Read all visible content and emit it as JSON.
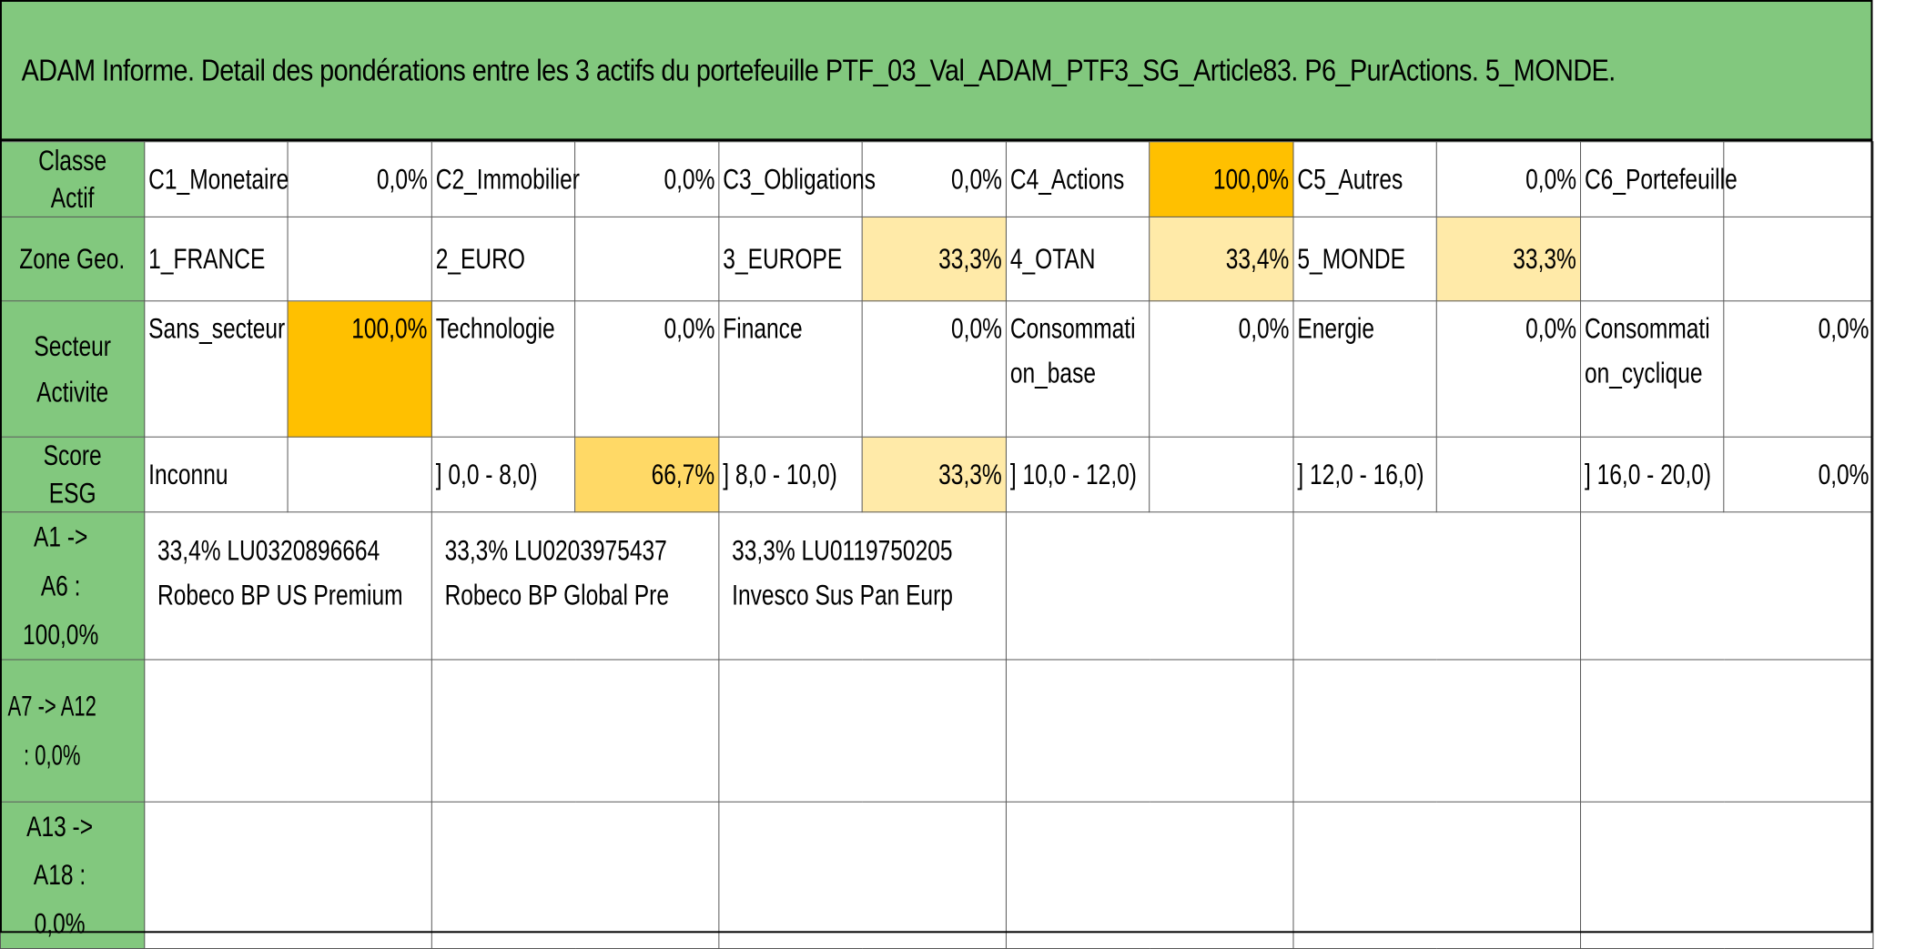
{
  "title": "ADAM Informe. Detail des pondérations entre les 3 actifs du portefeuille PTF_03_Val_ADAM_PTF3_SG_Article83. P6_PurActions. 5_MONDE.",
  "classe_actif": {
    "header": "Classe Actif",
    "items": [
      {
        "label": "C1_Monetaire",
        "value": "0,0%"
      },
      {
        "label": "C2_Immobilier",
        "value": "0,0%"
      },
      {
        "label": "C3_Obligations",
        "value": "0,0%"
      },
      {
        "label": "C4_Actions",
        "value": "100,0%"
      },
      {
        "label": "C5_Autres",
        "value": "0,0%"
      },
      {
        "label": "C6_Portefeuille",
        "value": ""
      }
    ]
  },
  "zone_geo": {
    "header": "Zone Geo.",
    "items": [
      {
        "label": "1_FRANCE",
        "value": ""
      },
      {
        "label": "2_EURO",
        "value": ""
      },
      {
        "label": "3_EUROPE",
        "value": "33,3%"
      },
      {
        "label": "4_OTAN",
        "value": "33,4%"
      },
      {
        "label": "5_MONDE",
        "value": "33,3%"
      },
      {
        "label": "",
        "value": ""
      }
    ]
  },
  "secteur": {
    "header": "Secteur Activite",
    "items": [
      {
        "label": "Sans_secteur",
        "value": "100,0%"
      },
      {
        "label": "Technologie",
        "value": "0,0%"
      },
      {
        "label": "Finance",
        "value": "0,0%"
      },
      {
        "label": "Consommation_base",
        "value": "0,0%"
      },
      {
        "label": "Energie",
        "value": "0,0%"
      },
      {
        "label": "Consommation_cyclique",
        "value": "0,0%"
      }
    ]
  },
  "score_esg": {
    "header": "Score ESG",
    "items": [
      {
        "label": "Inconnu",
        "value": ""
      },
      {
        "label": "] 0,0 - 8,0)",
        "value": "66,7%"
      },
      {
        "label": "] 8,0 - 10,0)",
        "value": "33,3%"
      },
      {
        "label": "] 10,0 - 12,0)",
        "value": ""
      },
      {
        "label": "] 12,0 - 16,0)",
        "value": ""
      },
      {
        "label": "] 16,0 - 20,0)",
        "value": "0,0%"
      }
    ]
  },
  "assets": {
    "group1": {
      "header": "A1 -> A6 : 100,0%",
      "items": [
        {
          "line1": "33,4% LU0320896664",
          "line2": "Robeco BP US Premium"
        },
        {
          "line1": "33,3% LU0203975437",
          "line2": "Robeco BP Global Pre"
        },
        {
          "line1": "33,3% LU0119750205",
          "line2": "Invesco Sus Pan Eurp"
        }
      ]
    },
    "group2": {
      "header": "A7 -> A12 : 0,0%"
    },
    "group3": {
      "header": "A13 -> A18 : 0,0%"
    }
  },
  "colors": {
    "header_green": "#82c87e",
    "weight_full": "#ffc000",
    "weight_high": "#ffd966",
    "weight_mid": "#ffeaa8"
  }
}
